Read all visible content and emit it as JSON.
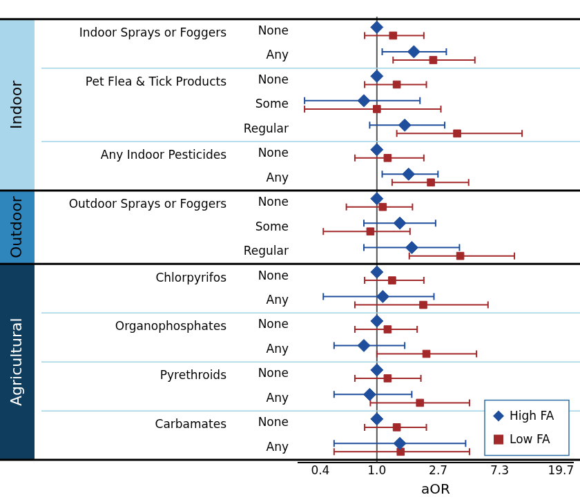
{
  "chart_data": {
    "type": "forest",
    "x_label": "aOR",
    "log": "x",
    "xlim": [
      0.28,
      24
    ],
    "xticks": [
      0.4,
      {
        "value": 1,
        "label": "1.0"
      },
      2.7,
      7.3,
      19.7
    ],
    "grid": false,
    "reference_line": 1,
    "legend": "lower right",
    "groups": [
      {
        "label": "Indoor",
        "color": "#a9d6ea",
        "exposures": [
          {
            "label": "Indoor Sprays or Foggers",
            "levels": [
              "None",
              "Any"
            ]
          },
          {
            "label": "Pet Flea & Tick Products",
            "levels": [
              "None",
              "Some",
              "Regular"
            ]
          },
          {
            "label": "Any Indoor Pesticides",
            "levels": [
              "None",
              "Any"
            ]
          }
        ]
      },
      {
        "label": "Outdoor",
        "color": "#2f86bd",
        "exposures": [
          {
            "label": "Outdoor Sprays or Foggers",
            "levels": [
              "None",
              "Some",
              "Regular"
            ]
          }
        ]
      },
      {
        "label": "Agricultural",
        "color": "#0f3d5e",
        "exposures": [
          {
            "label": "Chlorpyrifos",
            "levels": [
              "None",
              "Any"
            ]
          },
          {
            "label": "Organophosphates",
            "levels": [
              "None",
              "Any"
            ]
          },
          {
            "label": "Pyrethroids",
            "levels": [
              "None",
              "Any"
            ]
          },
          {
            "label": "Carbamates",
            "levels": [
              "None",
              "Any"
            ]
          }
        ]
      }
    ],
    "series": [
      {
        "name": "High FA",
        "color": "#1f4e9c",
        "marker": "diamond",
        "values": [
          1,
          1.82,
          1,
          0.81,
          1.57,
          1,
          1.67,
          1,
          1.45,
          1.76,
          1,
          1.1,
          1,
          0.81,
          1,
          0.89,
          1,
          1.45
        ],
        "ci_low": [
          null,
          1.09,
          null,
          0.31,
          0.89,
          null,
          1.09,
          null,
          0.81,
          0.81,
          null,
          0.42,
          null,
          0.5,
          null,
          0.5,
          null,
          0.5
        ],
        "ci_high": [
          null,
          3.08,
          null,
          2.01,
          3.0,
          null,
          2.69,
          null,
          2.59,
          3.81,
          null,
          2.52,
          null,
          1.57,
          null,
          1.76,
          null,
          4.21
        ]
      },
      {
        "name": "Low FA",
        "color": "#a3282a",
        "marker": "square",
        "values": [
          1.3,
          2.49,
          1.38,
          1.0,
          3.67,
          1.19,
          2.4,
          1.1,
          0.9,
          3.86,
          1.28,
          2.12,
          1.19,
          2.23,
          1.19,
          2.01,
          1.38,
          1.47
        ],
        "ci_low": [
          0.82,
          1.3,
          0.82,
          0.31,
          1.38,
          0.7,
          1.28,
          0.61,
          0.42,
          1.69,
          0.82,
          0.7,
          0.7,
          1.0,
          0.7,
          0.9,
          0.82,
          0.5
        ],
        "ci_high": [
          2.14,
          4.89,
          2.23,
          2.82,
          10.5,
          2.14,
          4.42,
          1.78,
          1.71,
          9.28,
          2.14,
          6.05,
          1.92,
          5.02,
          2.04,
          4.48,
          2.23,
          4.48
        ]
      }
    ]
  }
}
